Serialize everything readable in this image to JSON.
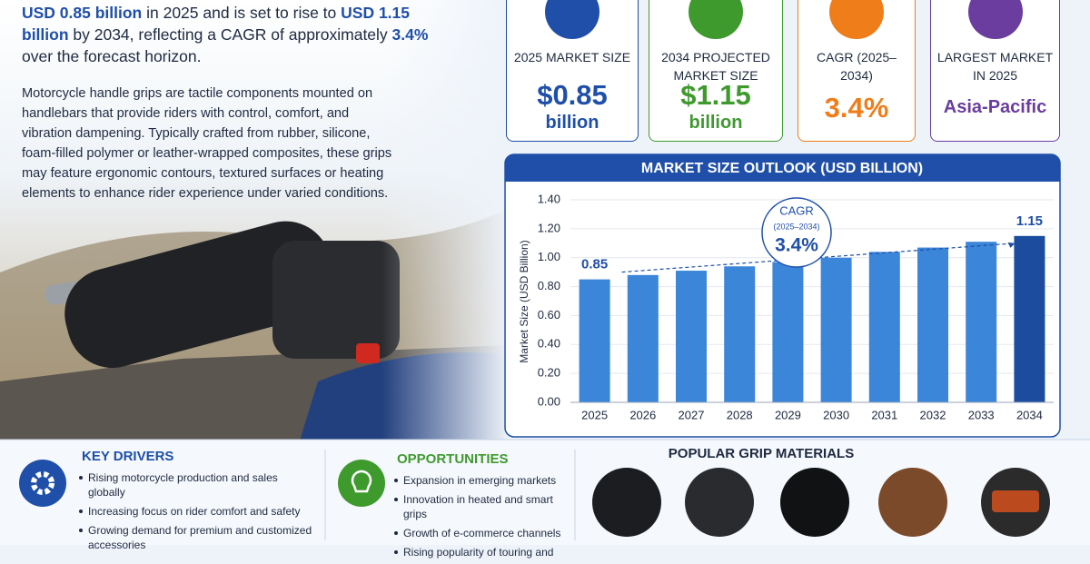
{
  "intro": [
    {
      "text": "USD 0.85 billion",
      "em": true
    },
    {
      "text": " in 2025 and is set to rise to ",
      "em": false
    },
    {
      "text": "USD 1.15 billion",
      "em": true
    },
    {
      "text": " by 2034, reflecting a CAGR of approximately ",
      "em": false
    },
    {
      "text": "3.4%",
      "em": true
    },
    {
      "text": " over the forecast horizon.",
      "em": false
    }
  ],
  "description": "Motorcycle handle grips are tactile components mounted on handlebars that provide riders with control, comfort, and vibration dampening. Typically crafted from rubber, silicone, foam-filled polymer or leather-wrapped composites, these grips may feature ergonomic contours, textured surfaces or heating elements to enhance rider experience under varied conditions.",
  "cards": [
    {
      "label": "2025 MARKET SIZE",
      "value": "$0.85",
      "unit": "billion",
      "color": "#1f4fa8"
    },
    {
      "label": "2034 PROJECTED MARKET SIZE",
      "value": "$1.15",
      "unit": "billion",
      "color": "#3f9a2e"
    },
    {
      "label": "CAGR (2025–2034)",
      "value": "3.4%",
      "color": "#ef7d1a"
    },
    {
      "label": "LARGEST MARKET IN 2025",
      "value": "Asia-Pacific",
      "color": "#6a3d9e"
    }
  ],
  "chart_data": {
    "type": "bar",
    "title": "MARKET SIZE OUTLOOK (USD BILLION)",
    "y_label": "Market Size (USD Billion)",
    "categories": [
      "2025",
      "2026",
      "2027",
      "2028",
      "2029",
      "2030",
      "2031",
      "2032",
      "2033",
      "2034"
    ],
    "values": [
      0.85,
      0.88,
      0.91,
      0.94,
      0.97,
      1.0,
      1.04,
      1.07,
      1.11,
      1.15
    ],
    "value_labels": [
      "0.85",
      null,
      null,
      null,
      null,
      null,
      null,
      null,
      null,
      "1.15"
    ],
    "colors": [
      "#3b86d9",
      "#3b86d9",
      "#3b86d9",
      "#3b86d9",
      "#3b86d9",
      "#3b86d9",
      "#3b86d9",
      "#3b86d9",
      "#3b86d9",
      "#1b4c9e"
    ],
    "ylim": [
      0,
      1.4
    ],
    "yticks": [
      {
        "value": 0,
        "label": "0.00"
      },
      {
        "value": 0.2,
        "label": "0.20"
      },
      {
        "value": 0.4,
        "label": "0.40"
      },
      {
        "value": 0.6,
        "label": "0.60"
      },
      {
        "value": 0.8,
        "label": "0.80"
      },
      {
        "value": 1.0,
        "label": "1.00"
      },
      {
        "value": 1.2,
        "label": "1.20"
      },
      {
        "value": 1.4,
        "label": "1.40"
      }
    ],
    "grid": true,
    "annotation": {
      "title": "CAGR",
      "period": "(2025–2034)",
      "value": "3.4%"
    }
  },
  "drivers": {
    "title": "KEY DRIVERS",
    "items": [
      "Rising motorcycle production and sales globally",
      "Increasing focus on rider comfort and safety",
      "Growing demand for premium and customized accessories"
    ]
  },
  "opportunities": {
    "title": "OPPORTUNITIES",
    "items": [
      "Expansion in emerging markets",
      "Innovation in heated and smart grips",
      "Growth of e-commerce channels",
      "Rising popularity of touring and"
    ]
  },
  "materials": {
    "title": "POPULAR GRIP MATERIALS"
  }
}
